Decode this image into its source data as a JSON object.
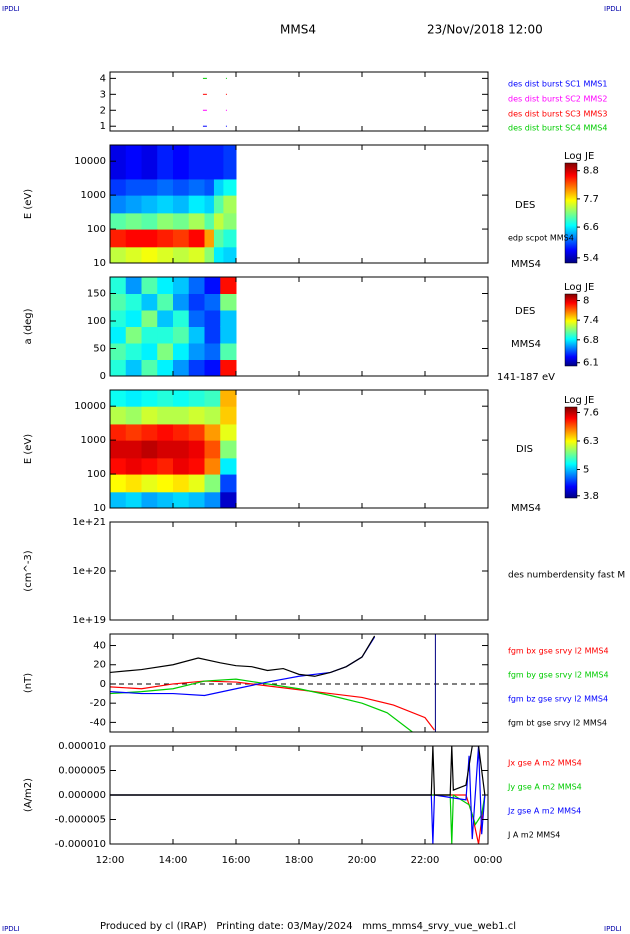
{
  "header": {
    "title": "MMS4",
    "date": "23/Nov/2018 12:00",
    "corner_left": "IPDLI",
    "corner_right": "IPDLI"
  },
  "footer": {
    "text": "Produced by cl (IRAP)   Printing date: 03/May/2024   mms_mms4_srvy_vue_web1.cl",
    "corner_left": "IPDLI",
    "corner_right": "IPDLI"
  },
  "xlim": [
    12,
    24
  ],
  "xticks": [
    {
      "value": 12,
      "label": "12:00"
    },
    {
      "value": 14,
      "label": "14:00"
    },
    {
      "value": 16,
      "label": "16:00"
    },
    {
      "value": 18,
      "label": "18:00"
    },
    {
      "value": 20,
      "label": "20:00"
    },
    {
      "value": 22,
      "label": "22:00"
    },
    {
      "value": 24,
      "label": "00:00"
    }
  ],
  "chart_data": [
    {
      "type": "status",
      "ylim": [
        0.7,
        4.4
      ],
      "yticks": [
        1,
        2,
        3,
        4
      ],
      "series": [
        {
          "name": "des dist burst SC1 MMS1",
          "color": "#0000ff",
          "x": [
            14.95,
            15.68
          ],
          "values": [
            1,
            1
          ]
        },
        {
          "name": "des dist burst SC2 MMS2",
          "color": "#ff00ff",
          "x": [
            14.95,
            15.68
          ],
          "values": [
            2,
            2
          ]
        },
        {
          "name": "des dist burst SC3 MMS3",
          "color": "#ff0000",
          "x": [
            14.95,
            15.68
          ],
          "values": [
            3,
            3
          ]
        },
        {
          "name": "des dist burst SC4 MMS4",
          "color": "#00cc00",
          "x": [
            14.95,
            15.68
          ],
          "values": [
            4,
            4
          ]
        }
      ]
    },
    {
      "type": "spectrogram",
      "ylabel": "E (eV)",
      "log": true,
      "ylim": [
        10,
        30000
      ],
      "yticks": [
        10,
        100,
        1000,
        10000
      ],
      "labels": [
        "DES",
        "edp scpot MMS4",
        "MMS4"
      ],
      "colorbar_title": "Log JE",
      "clim": [
        5.2,
        9.1
      ],
      "cticks": [
        8.8,
        7.7,
        6.6,
        5.4
      ],
      "xbins": [
        12,
        12.5,
        13,
        13.5,
        14,
        14.5,
        15,
        15.3,
        15.6,
        16
      ],
      "ybins": [
        10,
        30,
        100,
        300,
        1000,
        3000,
        30000
      ],
      "values": [
        [
          7.4,
          8.5,
          7.0,
          6.2,
          5.9,
          5.6
        ],
        [
          7.5,
          8.6,
          7.1,
          6.3,
          6.0,
          5.7
        ],
        [
          7.6,
          8.6,
          7.0,
          6.4,
          6.0,
          5.6
        ],
        [
          7.5,
          8.5,
          7.2,
          6.5,
          6.1,
          5.8
        ],
        [
          7.4,
          8.4,
          7.1,
          6.4,
          6.0,
          5.7
        ],
        [
          7.5,
          8.6,
          7.3,
          6.6,
          6.1,
          5.8
        ],
        [
          7.2,
          8.0,
          7.0,
          6.5,
          6.0,
          5.8
        ],
        [
          6.6,
          7.0,
          7.4,
          7.0,
          6.5,
          5.8
        ],
        [
          6.5,
          6.8,
          7.2,
          7.3,
          6.7,
          5.9
        ]
      ]
    },
    {
      "type": "spectrogram",
      "ylabel": "a (deg)",
      "log": false,
      "ylim": [
        0,
        180
      ],
      "yticks": [
        0,
        50,
        100,
        150
      ],
      "labels": [
        "DES",
        "MMS4",
        "141-187 eV"
      ],
      "colorbar_title": "Log JE",
      "clim": [
        6.0,
        8.2
      ],
      "cticks": [
        8.0,
        7.4,
        6.8,
        6.1
      ],
      "xbins": [
        12,
        12.5,
        13,
        13.5,
        14,
        14.5,
        15,
        15.5,
        16
      ],
      "ybins": [
        0,
        30,
        60,
        90,
        120,
        150,
        180
      ],
      "values": [
        [
          6.9,
          7.0,
          6.8,
          6.9,
          7.0,
          6.9
        ],
        [
          6.7,
          6.9,
          7.1,
          6.8,
          6.9,
          6.6
        ],
        [
          7.0,
          6.8,
          6.9,
          7.1,
          6.7,
          7.0
        ],
        [
          6.8,
          7.1,
          6.9,
          6.7,
          7.0,
          6.8
        ],
        [
          6.6,
          6.8,
          7.0,
          6.9,
          6.6,
          6.7
        ],
        [
          6.4,
          6.6,
          6.7,
          6.5,
          6.4,
          6.5
        ],
        [
          6.3,
          6.5,
          6.4,
          6.4,
          6.5,
          6.3
        ],
        [
          7.9,
          7.0,
          6.7,
          6.7,
          7.1,
          7.9
        ]
      ]
    },
    {
      "type": "spectrogram",
      "ylabel": "E (eV)",
      "log": true,
      "ylim": [
        10,
        30000
      ],
      "yticks": [
        10,
        100,
        1000,
        10000
      ],
      "labels": [
        "DIS",
        "MMS4"
      ],
      "colorbar_title": "Log JE",
      "clim": [
        3.7,
        7.85
      ],
      "cticks": [
        7.6,
        6.3,
        5.0,
        3.8
      ],
      "xbins": [
        12,
        12.5,
        13,
        13.5,
        14,
        14.5,
        15,
        15.5,
        16
      ],
      "ybins": [
        10,
        30,
        100,
        300,
        1000,
        3000,
        10000,
        30000
      ],
      "values": [
        [
          5.0,
          6.3,
          7.3,
          7.5,
          7.2,
          6.0,
          5.3
        ],
        [
          5.1,
          6.4,
          7.4,
          7.5,
          7.1,
          5.9,
          5.2
        ],
        [
          4.9,
          6.2,
          7.3,
          7.6,
          7.2,
          6.1,
          5.3
        ],
        [
          5.0,
          6.3,
          7.2,
          7.5,
          7.3,
          6.0,
          5.4
        ],
        [
          5.1,
          6.4,
          7.4,
          7.5,
          7.2,
          6.0,
          5.3
        ],
        [
          5.0,
          6.2,
          7.3,
          7.4,
          7.1,
          6.1,
          5.4
        ],
        [
          4.8,
          5.8,
          6.8,
          7.0,
          6.7,
          6.0,
          5.5
        ],
        [
          4.0,
          4.5,
          5.2,
          5.8,
          6.2,
          6.5,
          6.6
        ]
      ]
    },
    {
      "type": "line",
      "ylabel": "(cm^-3)",
      "log": true,
      "ylim": [
        1e+19,
        1e+21
      ],
      "yticks": [
        {
          "value": 1e+19,
          "label": "1e+19"
        },
        {
          "value": 1e+20,
          "label": "1e+20"
        },
        {
          "value": 1e+21,
          "label": "1e+21"
        }
      ],
      "labels": [
        "des numberdensity fast M"
      ],
      "series": []
    },
    {
      "type": "line",
      "ylabel": "(nT)",
      "log": false,
      "ylim": [
        -50,
        52
      ],
      "yticks": [
        -40,
        -20,
        0,
        20,
        40
      ],
      "hlines": [
        0
      ],
      "vlines": [
        22.33
      ],
      "series": [
        {
          "name": "fgm bx gse srvy l2 MMS4",
          "color": "#ff0000",
          "x": [
            12,
            13,
            14,
            15,
            16,
            17,
            18,
            19,
            20,
            21,
            22,
            22.3
          ],
          "values": [
            -3,
            -5,
            0,
            3,
            2,
            -2,
            -6,
            -10,
            -14,
            -22,
            -35,
            -48
          ]
        },
        {
          "name": "fgm by gse srvy l2 MMS4",
          "color": "#00cc00",
          "x": [
            12,
            13,
            14,
            15,
            16,
            17,
            18,
            19,
            20,
            20.8,
            21.6
          ],
          "values": [
            -10,
            -8,
            -5,
            3,
            5,
            0,
            -5,
            -12,
            -20,
            -30,
            -50
          ]
        },
        {
          "name": "fgm bz gse srvy l2 MMS4",
          "color": "#0000ff",
          "x": [
            12,
            13,
            14,
            15,
            16,
            17,
            18,
            19,
            19.5,
            20,
            20.4
          ],
          "values": [
            -8,
            -10,
            -10,
            -12,
            -5,
            2,
            8,
            12,
            18,
            28,
            49
          ]
        },
        {
          "name": "fgm bt gse srvy l2 MMS4",
          "color": "#000000",
          "x": [
            12,
            13,
            14,
            14.8,
            15.5,
            16,
            16.5,
            17,
            17.5,
            18,
            18.5,
            19,
            19.5,
            20,
            20.4
          ],
          "values": [
            12,
            15,
            20,
            27,
            22,
            19,
            18,
            14,
            16,
            10,
            8,
            12,
            18,
            28,
            50
          ]
        }
      ]
    },
    {
      "type": "line",
      "ylabel": "(A/m2)",
      "log": false,
      "ylim": [
        -1e-05,
        1e-05
      ],
      "yticks": [
        {
          "value": -1e-05,
          "label": "-0.000010"
        },
        {
          "value": -5e-06,
          "label": "-0.000005"
        },
        {
          "value": 0,
          "label": "0.000000"
        },
        {
          "value": 5e-06,
          "label": "0.000005"
        },
        {
          "value": 1e-05,
          "label": "0.000010"
        }
      ],
      "series": [
        {
          "name": "Jx gse A m2 MMS4",
          "color": "#ff0000",
          "x": [
            12,
            23.3,
            23.5,
            23.7,
            23.9
          ],
          "values": [
            0,
            0,
            -4e-06,
            -1e-05,
            0
          ]
        },
        {
          "name": "Jy gse A m2 MMS4",
          "color": "#00cc00",
          "x": [
            12,
            22.8,
            22.85,
            22.9,
            23.4,
            23.6,
            23.8,
            23.9
          ],
          "values": [
            0,
            0,
            -1e-05,
            0,
            -2e-06,
            -6e-06,
            -4e-06,
            0
          ]
        },
        {
          "name": "Jz gse A m2 MMS4",
          "color": "#0000ff",
          "x": [
            12,
            22.2,
            22.25,
            22.3,
            23.3,
            23.4,
            23.5,
            23.7,
            23.8,
            23.9
          ],
          "values": [
            0,
            0,
            -1e-05,
            0,
            -1e-06,
            8e-06,
            -9e-06,
            1e-05,
            -8e-06,
            0
          ]
        },
        {
          "name": "J A m2 MMS4",
          "color": "#000000",
          "x": [
            12,
            22.2,
            22.25,
            22.3,
            22.8,
            22.85,
            22.9,
            23.3,
            23.5,
            23.7,
            23.9
          ],
          "values": [
            0,
            0,
            1e-05,
            0,
            0,
            1e-05,
            1e-06,
            2e-06,
            1e-05,
            1e-05,
            0
          ]
        }
      ]
    }
  ]
}
